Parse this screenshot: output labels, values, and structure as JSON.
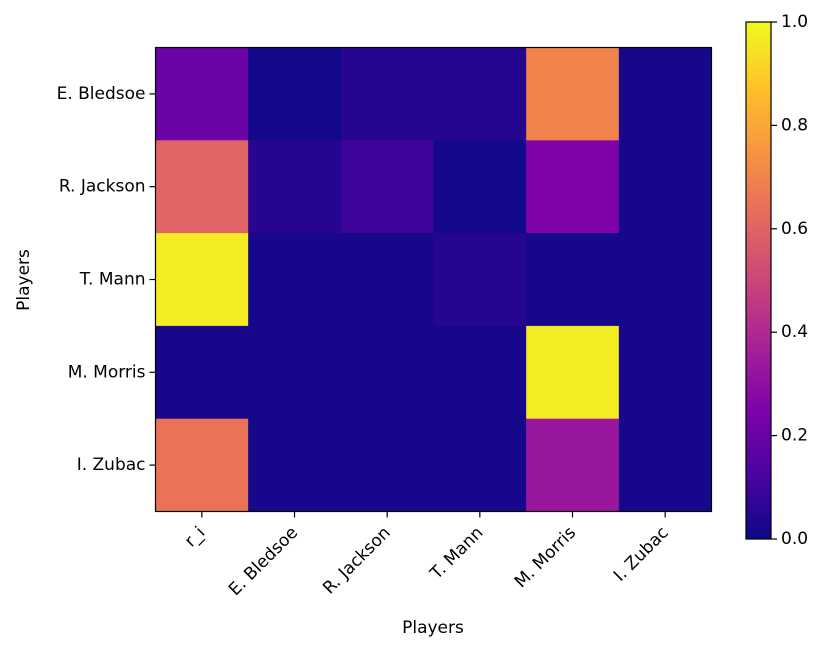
{
  "chart_data": {
    "type": "heatmap",
    "title": "",
    "xlabel": "Players",
    "ylabel": "Players",
    "x_categories": [
      "r_i",
      "E. Bledsoe",
      "R. Jackson",
      "T. Mann",
      "M. Morris",
      "I. Zubac"
    ],
    "y_categories": [
      "E. Bledsoe",
      "R. Jackson",
      "T. Mann",
      "M. Morris",
      "I. Zubac"
    ],
    "values": [
      [
        0.2,
        0.01,
        0.05,
        0.05,
        0.7,
        0.02
      ],
      [
        0.6,
        0.05,
        0.1,
        0.01,
        0.25,
        0.02
      ],
      [
        0.97,
        0.02,
        0.02,
        0.05,
        0.02,
        0.02
      ],
      [
        0.02,
        0.02,
        0.02,
        0.02,
        0.97,
        0.02
      ],
      [
        0.65,
        0.02,
        0.02,
        0.02,
        0.33,
        0.02
      ]
    ],
    "colormap": "plasma",
    "colorbar": {
      "range": [
        0.0,
        1.0
      ],
      "ticks": [
        "0.0",
        "0.2",
        "0.4",
        "0.6",
        "0.8",
        "1.0"
      ]
    }
  }
}
